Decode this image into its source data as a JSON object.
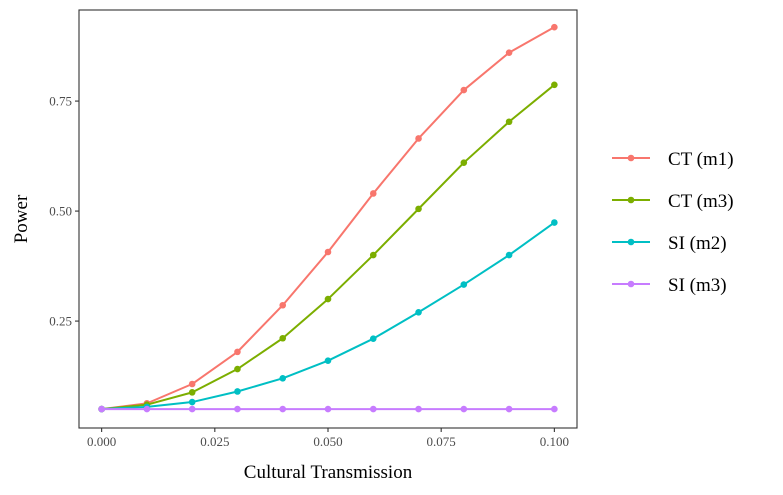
{
  "chart_data": {
    "type": "line",
    "title": "",
    "xlabel": "Cultural Transmission",
    "ylabel": "Power",
    "x": [
      0.0,
      0.01,
      0.02,
      0.03,
      0.04,
      0.05,
      0.06,
      0.07,
      0.08,
      0.09,
      0.1
    ],
    "xlim": [
      -0.005,
      0.105
    ],
    "ylim": [
      0.007,
      0.957
    ],
    "x_ticks": [
      0.0,
      0.025,
      0.05,
      0.075,
      0.1
    ],
    "x_tick_labels": [
      "0.000",
      "0.025",
      "0.050",
      "0.075",
      "0.100"
    ],
    "y_ticks": [
      0.25,
      0.5,
      0.75
    ],
    "y_tick_labels": [
      "0.25",
      "0.50",
      "0.75"
    ],
    "grid": false,
    "legend_position": "right",
    "series": [
      {
        "name": "CT (m1)",
        "color": "#F8766D",
        "values": [
          0.05,
          0.063,
          0.107,
          0.18,
          0.286,
          0.407,
          0.54,
          0.665,
          0.775,
          0.86,
          0.918
        ]
      },
      {
        "name": "CT (m3)",
        "color": "#7CAE00",
        "values": [
          0.05,
          0.06,
          0.088,
          0.141,
          0.211,
          0.3,
          0.4,
          0.505,
          0.61,
          0.703,
          0.787
        ]
      },
      {
        "name": "SI (m2)",
        "color": "#00BFC4",
        "values": [
          0.05,
          0.055,
          0.066,
          0.09,
          0.12,
          0.16,
          0.21,
          0.27,
          0.333,
          0.4,
          0.474
        ]
      },
      {
        "name": "SI (m3)",
        "color": "#C77CFF",
        "values": [
          0.05,
          0.05,
          0.05,
          0.05,
          0.05,
          0.05,
          0.05,
          0.05,
          0.05,
          0.05,
          0.05
        ]
      }
    ]
  }
}
